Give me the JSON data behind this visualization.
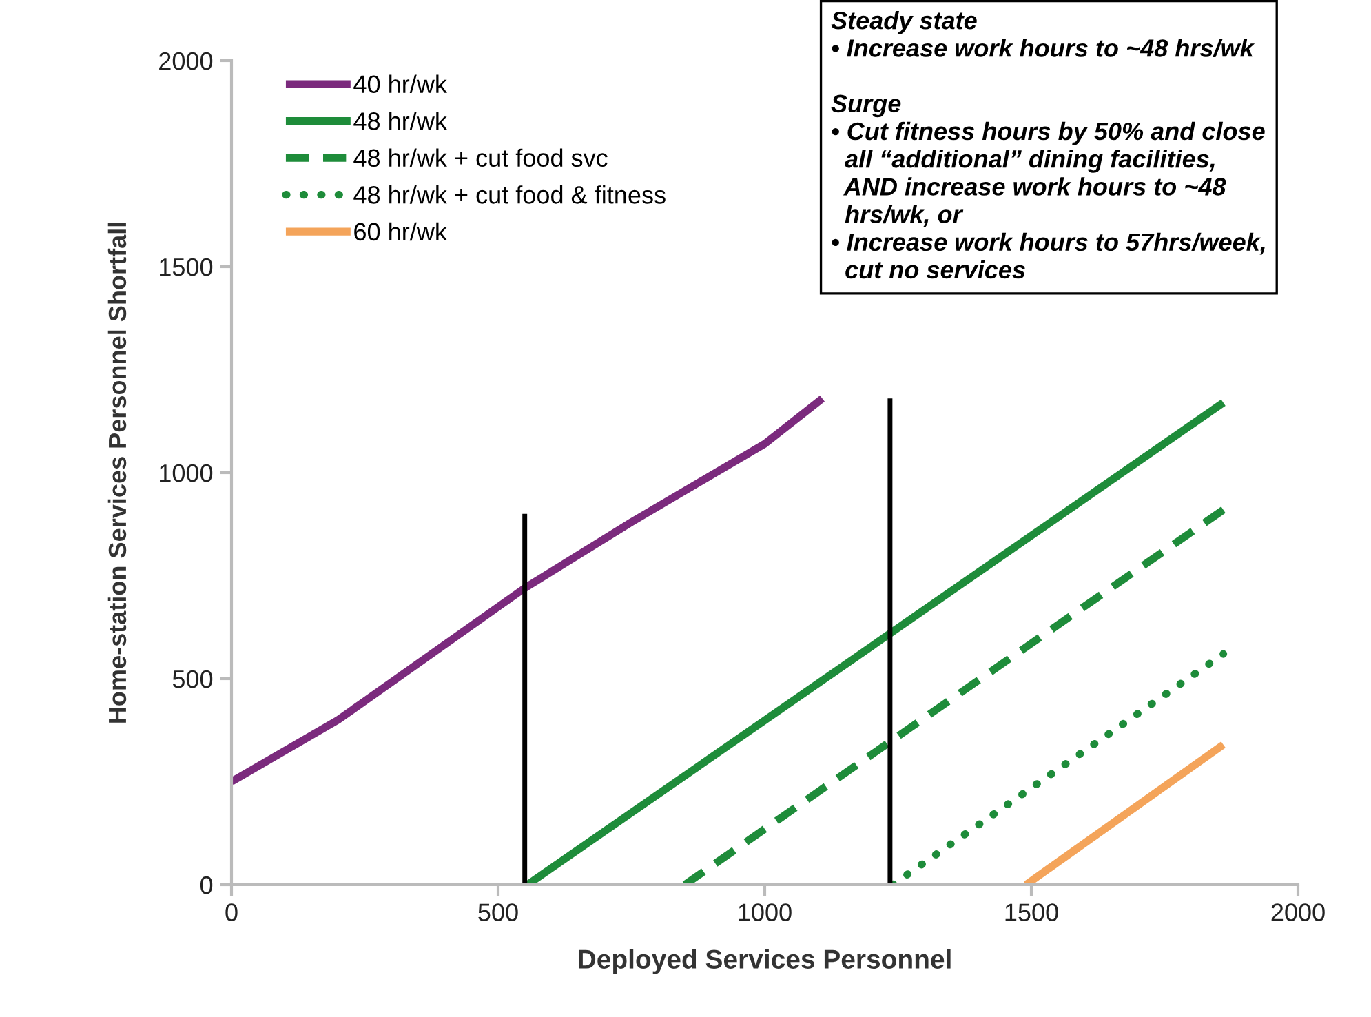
{
  "chart_data": {
    "type": "line",
    "xlabel": "Deployed Services Personnel",
    "ylabel": "Home-station Services Personnel Shortfall",
    "xlim": [
      0,
      2000
    ],
    "ylim": [
      0,
      2000
    ],
    "xticks": [
      0,
      500,
      1000,
      1500,
      2000
    ],
    "yticks": [
      0,
      500,
      1000,
      1500,
      2000
    ],
    "grid": false,
    "legend": "top left",
    "marker": "none",
    "series": [
      {
        "name": "40 hr/wk",
        "color": "#7b2a7d",
        "line_style": "solid",
        "x": [
          0,
          200,
          550,
          750,
          1000,
          1108
        ],
        "values": [
          250,
          400,
          720,
          880,
          1070,
          1180
        ]
      },
      {
        "name": "48 hr/wk",
        "color": "#1e8c3a",
        "line_style": "solid",
        "x": [
          555,
          1860
        ],
        "values": [
          0,
          1170
        ]
      },
      {
        "name": "48 hr/wk + cut food svc",
        "color": "#1e8c3a",
        "line_style": "dashed",
        "x": [
          850,
          1860
        ],
        "values": [
          0,
          910
        ]
      },
      {
        "name": "48 hr/wk + cut food & fitness",
        "color": "#1e8c3a",
        "line_style": "dotted",
        "x": [
          1240,
          1860
        ],
        "values": [
          0,
          560
        ]
      },
      {
        "name": "60 hr/wk",
        "color": "#f4a45a",
        "line_style": "solid",
        "x": [
          1490,
          1860
        ],
        "values": [
          0,
          340
        ]
      },
      {
        "color": "#000000",
        "line_style": "solid",
        "x": [
          550,
          550
        ],
        "values": [
          0,
          900
        ]
      },
      {
        "color": "#000000",
        "line_style": "solid",
        "x": [
          1235,
          1235
        ],
        "values": [
          0,
          1180
        ]
      }
    ],
    "annotations": [
      "Steady state\n• Increase work hours to ~48 hrs/wk\n\nSurge\n• Cut fitness hours by 50% and close\n  all “additional” dining facilities,\n  AND increase work hours to ~48\n  hrs/wk, or\n• Increase work hours to 57hrs/week,\n  cut no services"
    ]
  }
}
